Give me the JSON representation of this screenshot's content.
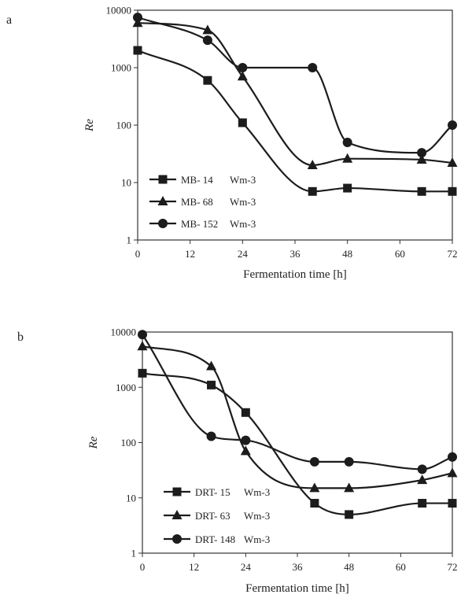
{
  "chart_data": [
    {
      "panel_label": "a",
      "type": "line",
      "y_scale": "log",
      "ylim": [
        1,
        10000
      ],
      "xlim": [
        0,
        72
      ],
      "x_ticks": [
        "0",
        "12",
        "24",
        "36",
        "48",
        "60",
        "72"
      ],
      "y_ticks": [
        "1",
        "10",
        "100",
        "1000",
        "10000"
      ],
      "xlabel": "Fermentation time [h]",
      "ylabel": "Re",
      "legend_position": "bottom-left",
      "grid": false,
      "series": [
        {
          "name": "MB- 14",
          "unit": "Wm-3",
          "marker": "square",
          "x": [
            0,
            16,
            24,
            40,
            48,
            65,
            72
          ],
          "y": [
            2000,
            600,
            110,
            7,
            8,
            7,
            7
          ]
        },
        {
          "name": "MB- 68",
          "unit": "Wm-3",
          "marker": "triangle",
          "x": [
            0,
            16,
            24,
            40,
            48,
            65,
            72
          ],
          "y": [
            6000,
            4500,
            700,
            20,
            26,
            25,
            22
          ]
        },
        {
          "name": "MB- 152",
          "unit": "Wm-3",
          "marker": "circle",
          "x": [
            0,
            16,
            24,
            40,
            48,
            65,
            72
          ],
          "y": [
            7500,
            3000,
            1000,
            1000,
            50,
            33,
            100
          ]
        }
      ]
    },
    {
      "panel_label": "b",
      "type": "line",
      "y_scale": "log",
      "ylim": [
        1,
        10000
      ],
      "xlim": [
        0,
        72
      ],
      "x_ticks": [
        "0",
        "12",
        "24",
        "36",
        "48",
        "60",
        "72"
      ],
      "y_ticks": [
        "1",
        "10",
        "100",
        "1000",
        "10000"
      ],
      "xlabel": "Fermentation time [h]",
      "ylabel": "Re",
      "legend_position": "bottom-left",
      "grid": false,
      "series": [
        {
          "name": "DRT- 15",
          "unit": "Wm-3",
          "marker": "square",
          "x": [
            0,
            16,
            24,
            40,
            48,
            65,
            72
          ],
          "y": [
            1800,
            1100,
            350,
            8,
            5,
            8,
            8
          ]
        },
        {
          "name": "DRT- 63",
          "unit": "Wm-3",
          "marker": "triangle",
          "x": [
            0,
            16,
            24,
            40,
            48,
            65,
            72
          ],
          "y": [
            5500,
            2400,
            70,
            15,
            15,
            21,
            28
          ]
        },
        {
          "name": "DRT- 148",
          "unit": "Wm-3",
          "marker": "circle",
          "x": [
            0,
            16,
            24,
            40,
            48,
            65,
            72
          ],
          "y": [
            9000,
            130,
            110,
            45,
            45,
            33,
            55
          ]
        }
      ]
    }
  ]
}
